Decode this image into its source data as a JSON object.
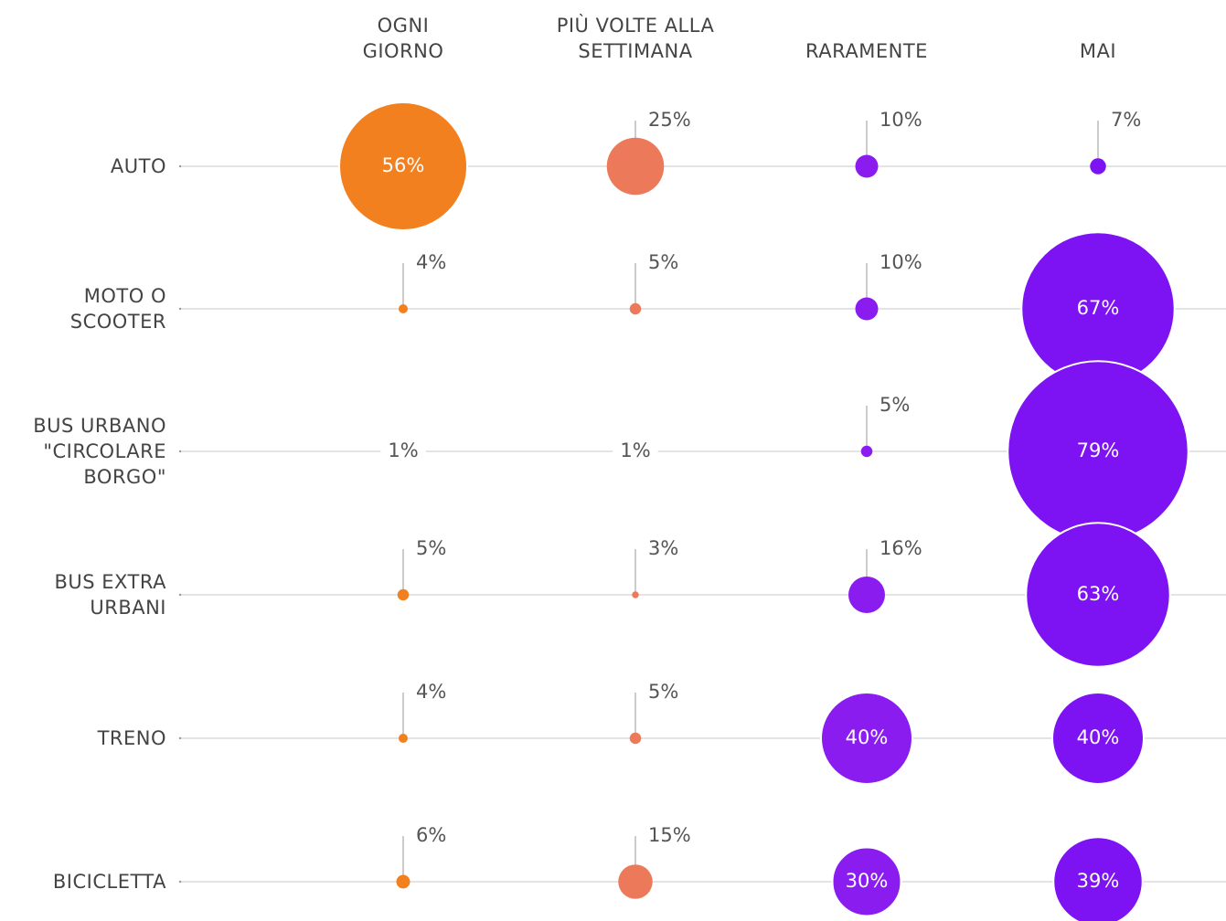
{
  "chart_data": {
    "type": "bubble",
    "categories": [
      "AUTO",
      "MOTO O\nSCOOTER",
      "BUS URBANO\n\"CIRCOLARE\nBORGO\"",
      "BUS EXTRA\nURBANI",
      "TRENO",
      "BICICLETTA"
    ],
    "series": [
      {
        "name": "OGNI\nGIORNO",
        "color": "#f2801f",
        "values": [
          56,
          4,
          1,
          5,
          4,
          6
        ],
        "value_labels": [
          "56%",
          "4%",
          "1%",
          "5%",
          "4%",
          "6%"
        ]
      },
      {
        "name": "PIÙ VOLTE ALLA\nSETTIMANA",
        "color": "#ec7a5a",
        "values": [
          25,
          5,
          1,
          3,
          5,
          15
        ],
        "value_labels": [
          "25%",
          "5%",
          "1%",
          "3%",
          "5%",
          "15%"
        ]
      },
      {
        "name": "RARAMENTE",
        "color": "#8a1cf0",
        "values": [
          10,
          10,
          5,
          16,
          40,
          30
        ],
        "value_labels": [
          "10%",
          "10%",
          "5%",
          "16%",
          "40%",
          "30%"
        ]
      },
      {
        "name": "MAI",
        "color": "#7d12f2",
        "values": [
          7,
          67,
          79,
          63,
          40,
          39
        ],
        "value_labels": [
          "7%",
          "67%",
          "79%",
          "63%",
          "40%",
          "39%"
        ]
      }
    ]
  }
}
